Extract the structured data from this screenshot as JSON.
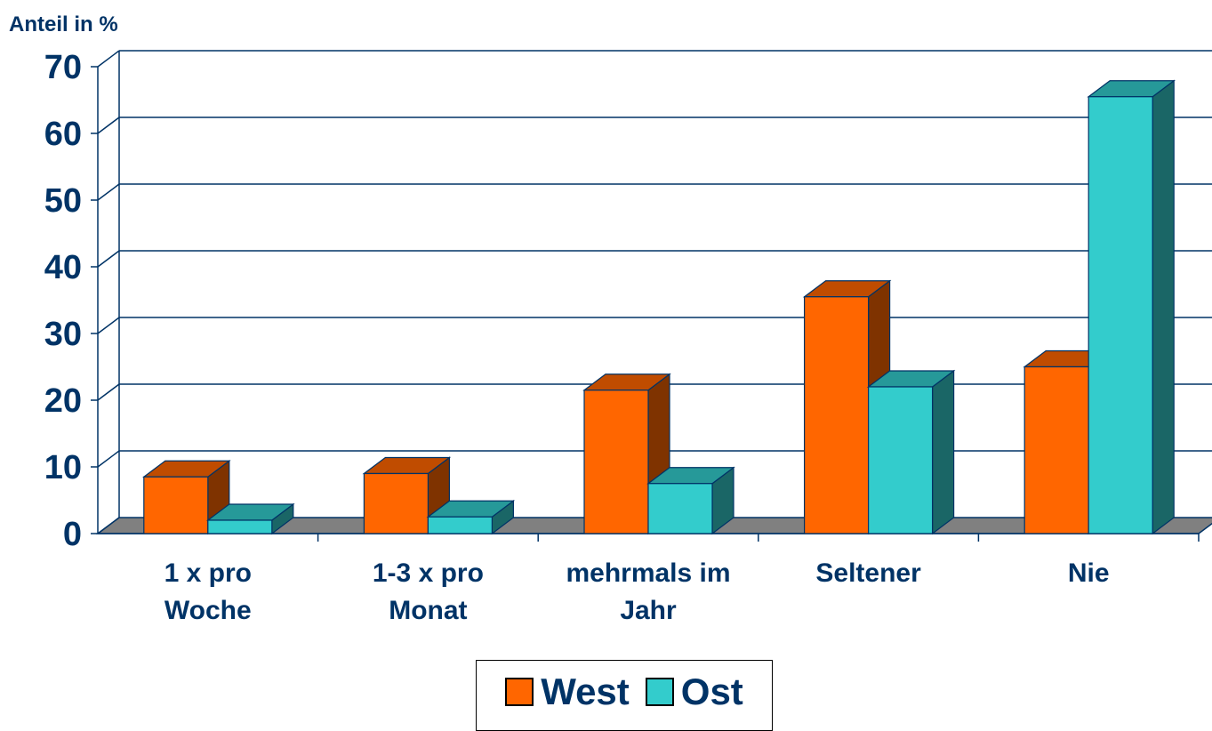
{
  "chart_data": {
    "type": "bar",
    "ylabel": "Anteil in %",
    "ylim": [
      0,
      70
    ],
    "yticks": [
      0,
      10,
      20,
      30,
      40,
      50,
      60,
      70
    ],
    "categories": [
      [
        "1 x pro",
        "Woche"
      ],
      [
        "1-3 x pro",
        "Monat"
      ],
      [
        "mehrmals im",
        "Jahr"
      ],
      [
        "Seltener"
      ],
      [
        "Nie"
      ]
    ],
    "series": [
      {
        "name": "West",
        "color": "#FF6600",
        "side": "#7F3300",
        "top": "#C04C00",
        "values": [
          8.5,
          9,
          21.5,
          35.5,
          25
        ]
      },
      {
        "name": "Ost",
        "color": "#33CCCC",
        "side": "#1A6666",
        "top": "#269999",
        "values": [
          2,
          2.5,
          7.5,
          22,
          65.5
        ]
      }
    ],
    "grid": true,
    "legend": "bottom",
    "three_d": true
  }
}
